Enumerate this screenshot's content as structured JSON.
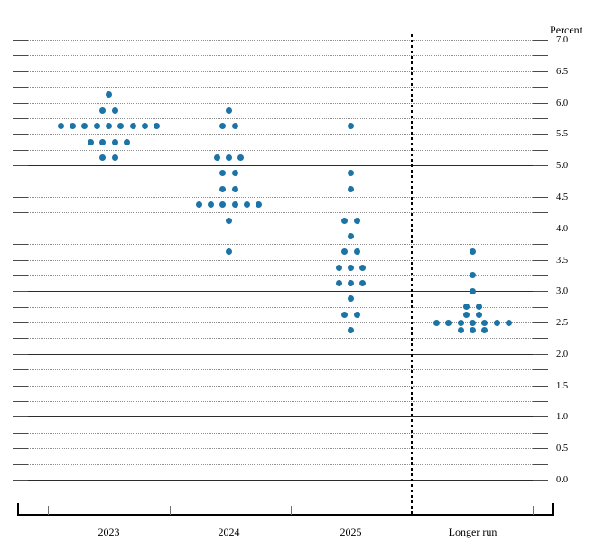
{
  "percent_label": "Percent",
  "colors": {
    "dot": "#1c74a6",
    "grid_dotted": "#8f8f8f",
    "grid_solid": "#2b2b2b",
    "axis": "#000000"
  },
  "y_axis": {
    "unit": "Percent",
    "min": 0.0,
    "max": 7.0,
    "grid_step": 0.25,
    "label_step": 0.5,
    "tick_labels": [
      "7.0",
      "6.5",
      "6.0",
      "5.5",
      "5.0",
      "4.5",
      "4.0",
      "3.5",
      "3.0",
      "2.5",
      "2.0",
      "1.5",
      "1.0",
      "0.5",
      "0.0"
    ],
    "solid_lines": [
      0.0,
      1.0,
      2.0,
      3.0,
      4.0,
      5.0
    ]
  },
  "x_axis": {
    "categories": [
      "2023",
      "2024",
      "2025",
      "Longer run"
    ]
  },
  "chart_data": {
    "type": "scatter",
    "subtype": "fomc-dot-plot",
    "title": "",
    "xlabel": "",
    "ylabel": "Percent",
    "ylim": [
      0.0,
      7.0
    ],
    "grid": "dotted-every-0.25, solid-every-1.0-up-to-5.0",
    "legend": "none",
    "categories": [
      "2023",
      "2024",
      "2025",
      "Longer run"
    ],
    "series": [
      {
        "name": "2023",
        "dots": [
          {
            "rate": 6.125,
            "count": 1
          },
          {
            "rate": 5.875,
            "count": 2
          },
          {
            "rate": 5.625,
            "count": 9
          },
          {
            "rate": 5.375,
            "count": 4
          },
          {
            "rate": 5.125,
            "count": 2
          }
        ]
      },
      {
        "name": "2024",
        "dots": [
          {
            "rate": 5.875,
            "count": 1
          },
          {
            "rate": 5.625,
            "count": 2
          },
          {
            "rate": 5.125,
            "count": 3
          },
          {
            "rate": 4.875,
            "count": 2
          },
          {
            "rate": 4.625,
            "count": 2
          },
          {
            "rate": 4.375,
            "count": 6
          },
          {
            "rate": 4.125,
            "count": 1
          },
          {
            "rate": 3.625,
            "count": 1
          }
        ]
      },
      {
        "name": "2025",
        "dots": [
          {
            "rate": 5.625,
            "count": 1
          },
          {
            "rate": 4.875,
            "count": 1
          },
          {
            "rate": 4.625,
            "count": 1
          },
          {
            "rate": 4.125,
            "count": 2
          },
          {
            "rate": 3.875,
            "count": 1
          },
          {
            "rate": 3.625,
            "count": 2
          },
          {
            "rate": 3.375,
            "count": 3
          },
          {
            "rate": 3.125,
            "count": 3
          },
          {
            "rate": 2.875,
            "count": 1
          },
          {
            "rate": 2.625,
            "count": 2
          },
          {
            "rate": 2.375,
            "count": 1
          }
        ]
      },
      {
        "name": "Longer run",
        "dots": [
          {
            "rate": 3.625,
            "count": 1
          },
          {
            "rate": 3.25,
            "count": 1
          },
          {
            "rate": 3.0,
            "count": 1
          },
          {
            "rate": 2.75,
            "count": 2
          },
          {
            "rate": 2.625,
            "count": 2
          },
          {
            "rate": 2.5,
            "count": 7
          },
          {
            "rate": 2.375,
            "count": 3
          }
        ]
      }
    ]
  }
}
